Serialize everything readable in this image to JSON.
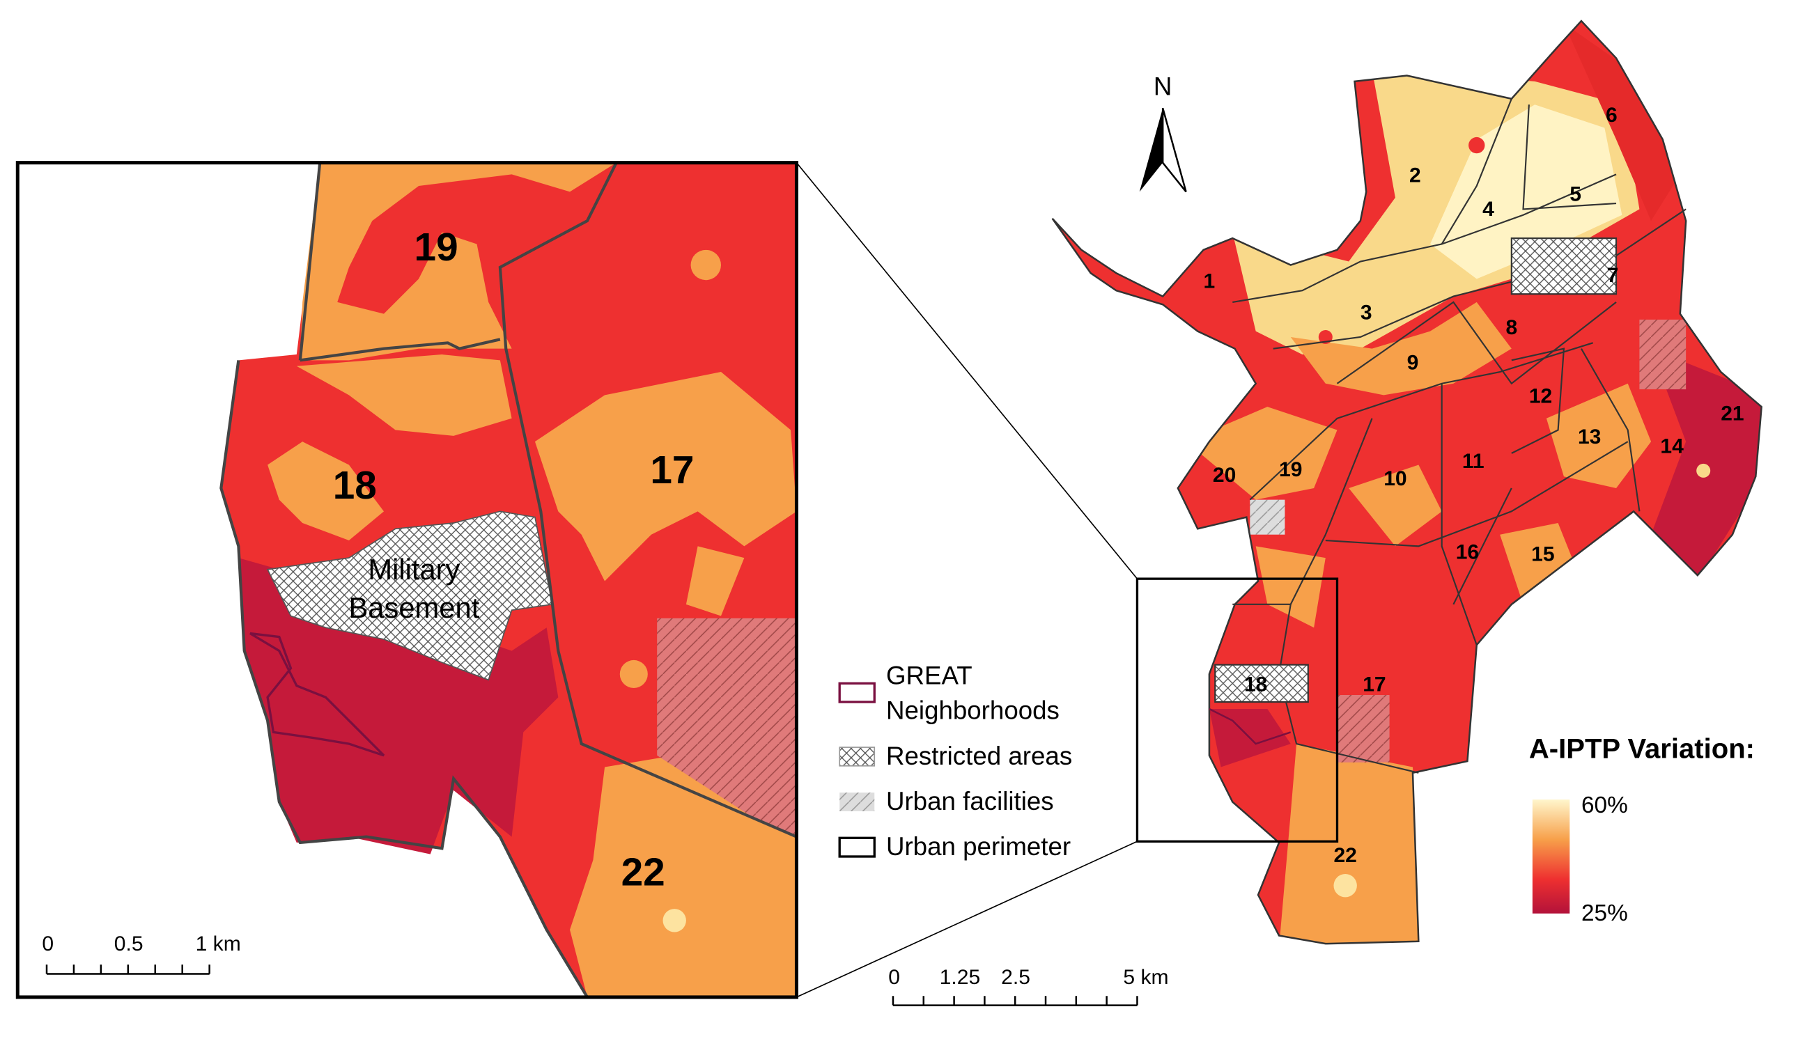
{
  "north_label": "N",
  "main_map": {
    "district_labels": [
      "1",
      "2",
      "3",
      "4",
      "5",
      "6",
      "7",
      "8",
      "9",
      "10",
      "11",
      "12",
      "13",
      "14",
      "15",
      "16",
      "17",
      "18",
      "19",
      "20",
      "21",
      "22"
    ]
  },
  "inset_map": {
    "district_labels": [
      "19",
      "18",
      "17",
      "22"
    ],
    "restricted_area_label": [
      "Military",
      "Basement"
    ]
  },
  "legend": {
    "items": [
      {
        "label": [
          "GREAT",
          "Neighborhoods"
        ]
      },
      {
        "label": [
          "Restricted areas"
        ]
      },
      {
        "label": [
          "Urban facilities"
        ]
      },
      {
        "label": [
          "Urban perimeter"
        ]
      }
    ]
  },
  "colorbar": {
    "title": "A-IPTP Variation:",
    "max_label": "60%",
    "min_label": "25%"
  },
  "scale_bars": {
    "inset": [
      "0",
      "0.5",
      "1 km"
    ],
    "main": [
      "0",
      "1.25",
      "2.5",
      "5 km"
    ]
  }
}
